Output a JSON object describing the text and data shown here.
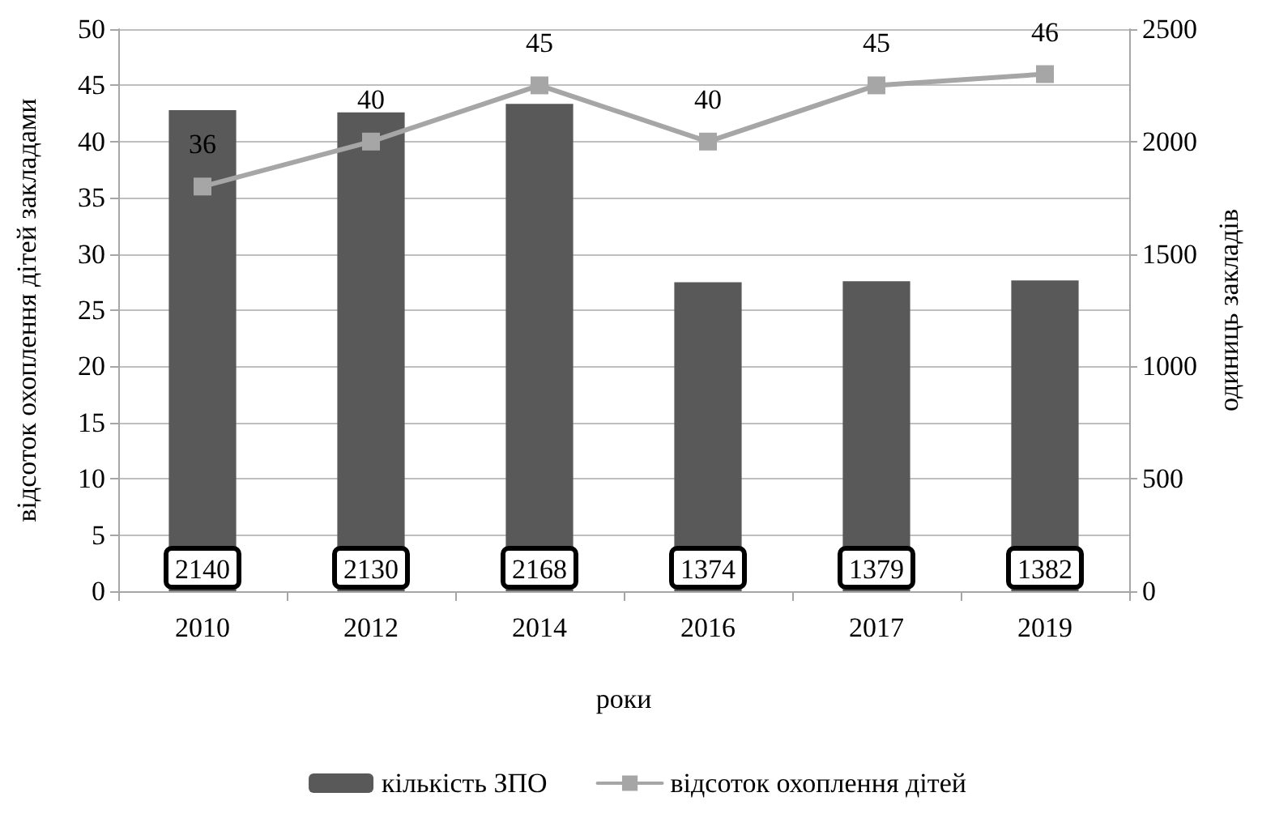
{
  "chart_data": {
    "type": "bar",
    "categories": [
      "2010",
      "2012",
      "2014",
      "2016",
      "2017",
      "2019"
    ],
    "series": [
      {
        "name": "кількість ЗПО",
        "axis": "y2",
        "color": "#595959",
        "values": [
          2140,
          2130,
          2168,
          1374,
          1379,
          1382
        ]
      },
      {
        "name": "відсоток охоплення дітей",
        "type": "line",
        "color": "#a6a6a6",
        "values": [
          36,
          40,
          45,
          40,
          45,
          46
        ]
      }
    ],
    "xlabel": "роки",
    "ylabel": "відсоток охоплення дітей закладами",
    "y2label": "одиниць закладів",
    "ylim": [
      0,
      50
    ],
    "yticks": [
      0,
      5,
      10,
      15,
      20,
      25,
      30,
      35,
      40,
      45,
      50
    ],
    "y2lim": [
      0,
      2500
    ],
    "y2ticks": [
      0,
      500,
      1000,
      1500,
      2000,
      2500
    ],
    "grid": "y",
    "legend": "bottom",
    "marker": "square",
    "line_style": "solid",
    "data_labels": true
  }
}
